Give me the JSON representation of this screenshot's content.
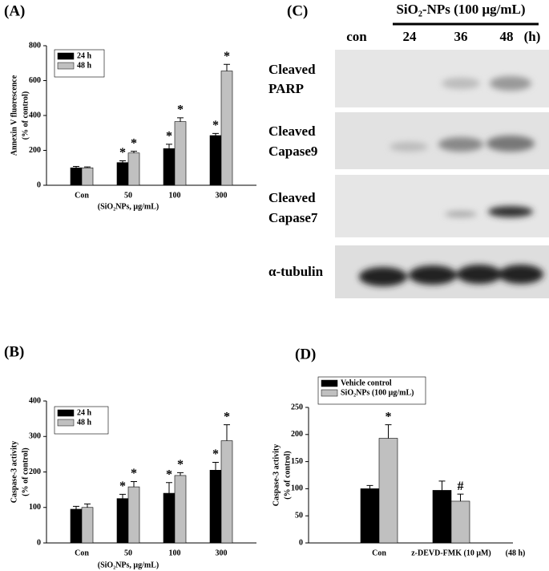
{
  "chart_data": [
    {
      "type": "bar",
      "panel_label": "(A)",
      "y_label": [
        "Annexin V fluorescence",
        "(% of control)"
      ],
      "x_label": "(SiO₂NPs, μg/mL)",
      "categories": [
        "Con",
        "50",
        "100",
        "300"
      ],
      "series": [
        {
          "name": "24 h",
          "color": "#000000",
          "values": [
            100,
            130,
            210,
            285
          ],
          "errors": [
            8,
            10,
            25,
            12
          ],
          "markers": [
            null,
            "*",
            "*",
            "*"
          ]
        },
        {
          "name": "48 h",
          "color": "#c0c0c0",
          "values": [
            100,
            185,
            365,
            655
          ],
          "errors": [
            5,
            10,
            22,
            38
          ],
          "markers": [
            null,
            "*",
            "*",
            "*"
          ]
        }
      ],
      "ylim": [
        0,
        800
      ],
      "yticks": [
        0,
        200,
        400,
        600,
        800
      ],
      "legend": "upper left"
    },
    {
      "type": "bar",
      "panel_label": "(B)",
      "y_label": [
        "Caspase-3 activity",
        "(% of control)"
      ],
      "x_label": "(SiO₂NPs, μg/mL)",
      "categories": [
        "Con",
        "50",
        "100",
        "300"
      ],
      "series": [
        {
          "name": "24 h",
          "color": "#000000",
          "values": [
            95,
            125,
            140,
            205
          ],
          "errors": [
            8,
            12,
            30,
            22
          ],
          "markers": [
            null,
            "*",
            "*",
            "*"
          ]
        },
        {
          "name": "48 h",
          "color": "#c0c0c0",
          "values": [
            100,
            158,
            190,
            288
          ],
          "errors": [
            10,
            15,
            8,
            45
          ],
          "markers": [
            null,
            "*",
            "*",
            "*"
          ]
        }
      ],
      "ylim": [
        0,
        400
      ],
      "yticks": [
        0,
        100,
        200,
        300,
        400
      ],
      "legend": "upper left"
    },
    {
      "type": "bar",
      "panel_label": "(D)",
      "y_label": [
        "Caspase-3 activity",
        "(% of control)"
      ],
      "x_note": "(48 h)",
      "categories": [
        "Con",
        "z-DEVD-FMK (10 μM)"
      ],
      "series": [
        {
          "name": "Vehicle control",
          "color": "#000000",
          "values": [
            100,
            97
          ],
          "errors": [
            6,
            17
          ],
          "markers": [
            null,
            null
          ]
        },
        {
          "name": "SiO₂NPs (100 μg/mL)",
          "color": "#c0c0c0",
          "values": [
            193,
            77
          ],
          "errors": [
            25,
            13
          ],
          "markers": [
            "*",
            "#"
          ]
        }
      ],
      "ylim": [
        0,
        250
      ],
      "yticks": [
        0,
        50,
        100,
        150,
        200,
        250
      ],
      "legend": "upper left"
    }
  ],
  "blot": {
    "panel_label": "(C)",
    "treatment": "SiO₂-NPs (100 μg/mL)",
    "lanes": [
      "con",
      "24",
      "36",
      "48",
      "(h)"
    ],
    "rows": [
      [
        "Cleaved",
        "PARP"
      ],
      [
        "Cleaved",
        "Capase9"
      ],
      [
        "Cleaved",
        "Capase7"
      ],
      [
        "α-tubulin"
      ]
    ]
  }
}
